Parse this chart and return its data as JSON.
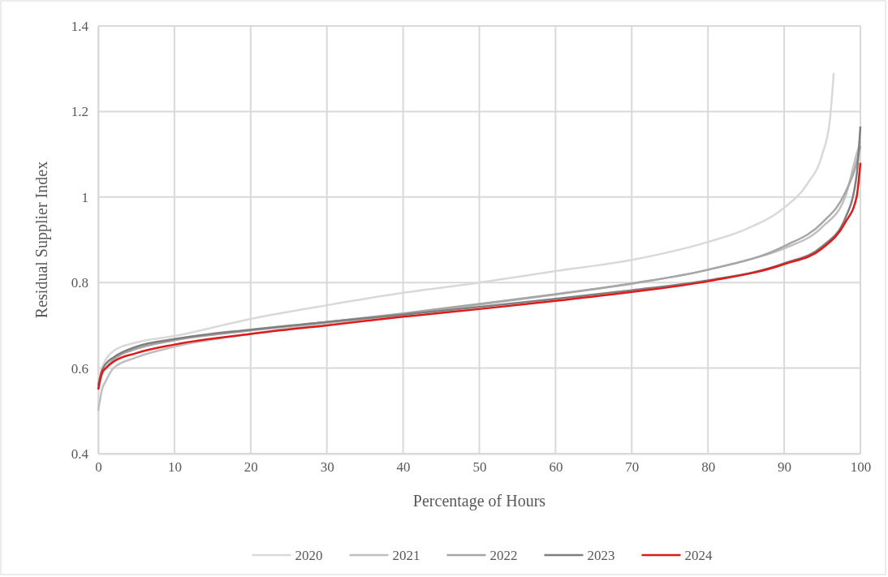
{
  "chart_data": {
    "type": "line",
    "xlabel": "Percentage of Hours",
    "ylabel": "Residual Supplier Index",
    "xlim": [
      0,
      100
    ],
    "ylim": [
      0.4,
      1.4
    ],
    "xticks": [
      0,
      10,
      20,
      30,
      40,
      50,
      60,
      70,
      80,
      90,
      100
    ],
    "yticks": [
      0.4,
      0.6,
      0.8,
      1,
      1.2,
      1.4
    ],
    "grid": true,
    "legend": "bottom",
    "line_style": "solid",
    "marker": "none",
    "series": [
      {
        "name": "2020",
        "color": "#d9d9d9",
        "x": [
          0,
          0.5,
          1,
          2,
          5,
          10,
          20,
          30,
          40,
          50,
          60,
          70,
          80,
          85,
          90,
          93,
          95,
          96,
          96.5
        ],
        "values": [
          0.55,
          0.6,
          0.62,
          0.64,
          0.66,
          0.675,
          0.715,
          0.747,
          0.776,
          0.8,
          0.827,
          0.853,
          0.895,
          0.925,
          0.975,
          1.03,
          1.1,
          1.18,
          1.29
        ]
      },
      {
        "name": "2021",
        "color": "#bfbfbf",
        "x": [
          0,
          0.5,
          1,
          2,
          5,
          10,
          20,
          30,
          40,
          50,
          60,
          70,
          80,
          85,
          90,
          95,
          98,
          99.5,
          100
        ],
        "values": [
          0.5,
          0.55,
          0.57,
          0.6,
          0.625,
          0.65,
          0.68,
          0.705,
          0.725,
          0.748,
          0.772,
          0.797,
          0.83,
          0.852,
          0.88,
          0.93,
          1,
          1.1,
          1.13
        ]
      },
      {
        "name": "2022",
        "color": "#a6a6a6",
        "x": [
          0,
          0.5,
          1,
          2,
          5,
          10,
          20,
          30,
          40,
          50,
          60,
          70,
          80,
          90,
          95,
          98,
          99.5,
          100
        ],
        "values": [
          0.55,
          0.585,
          0.6,
          0.62,
          0.645,
          0.665,
          0.688,
          0.708,
          0.728,
          0.75,
          0.773,
          0.798,
          0.83,
          0.885,
          0.94,
          1.01,
          1.08,
          1.12
        ]
      },
      {
        "name": "2023",
        "color": "#7f7f7f",
        "x": [
          0,
          0.5,
          1,
          2,
          5,
          10,
          20,
          30,
          40,
          50,
          60,
          70,
          80,
          90,
          95,
          98,
          99.5,
          100
        ],
        "values": [
          0.56,
          0.595,
          0.61,
          0.625,
          0.65,
          0.668,
          0.69,
          0.708,
          0.725,
          0.743,
          0.762,
          0.782,
          0.805,
          0.845,
          0.885,
          0.95,
          1.05,
          1.165
        ]
      },
      {
        "name": "2024",
        "color": "#e0191b",
        "x": [
          0,
          0.5,
          1,
          2,
          5,
          10,
          20,
          30,
          40,
          50,
          60,
          70,
          80,
          90,
          95,
          98,
          99.5,
          100
        ],
        "values": [
          0.55,
          0.59,
          0.6,
          0.615,
          0.635,
          0.655,
          0.68,
          0.7,
          0.72,
          0.738,
          0.757,
          0.778,
          0.803,
          0.843,
          0.88,
          0.94,
          1,
          1.08
        ]
      }
    ]
  }
}
